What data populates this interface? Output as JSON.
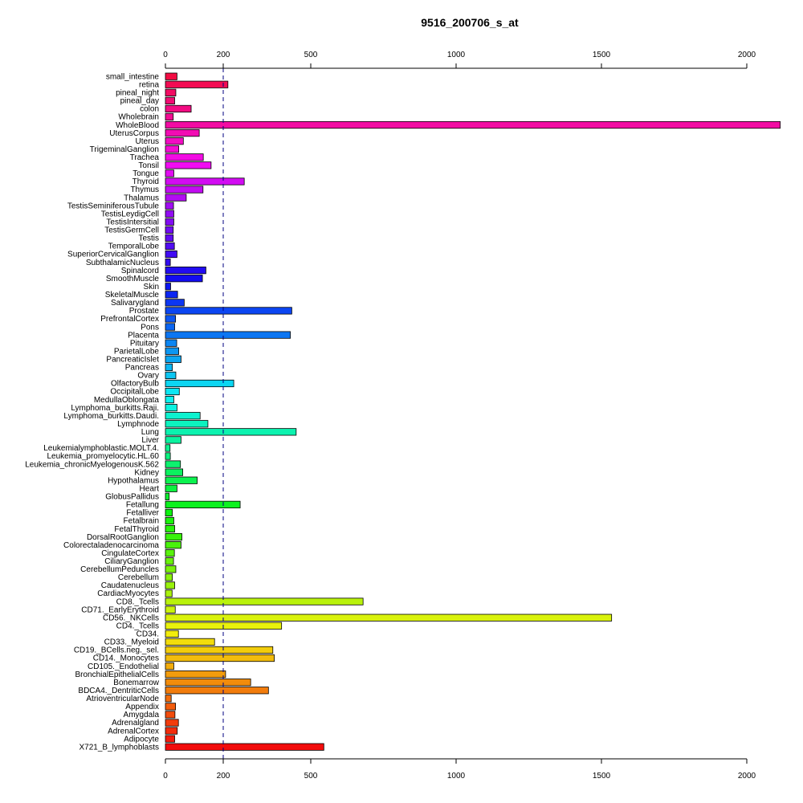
{
  "chart_data": {
    "type": "bar",
    "orientation": "horizontal",
    "title": "9516_200706_s_at",
    "xlabel": "",
    "ylabel": "",
    "grid": false,
    "reference_line": 200,
    "ticks": [
      {
        "value": 0,
        "label": "0"
      },
      {
        "value": 200,
        "label": "200"
      },
      {
        "value": 500,
        "label": "500"
      },
      {
        "value": 1000,
        "label": "1000"
      },
      {
        "value": 1500,
        "label": "1500"
      },
      {
        "value": 2000,
        "label": "2000"
      }
    ],
    "categories": [
      "small_intestine",
      "retina",
      "pineal_night",
      "pineal_day",
      "colon",
      "Wholebrain",
      "WholeBlood",
      "UterusCorpus",
      "Uterus",
      "TrigeminalGanglion",
      "Trachea",
      "Tonsil",
      "Tongue",
      "Thyroid",
      "Thymus",
      "Thalamus",
      "TestisSeminiferousTubule",
      "TestisLeydigCell",
      "TestisIntersitial",
      "TestisGermCell",
      "Testis",
      "TemporalLobe",
      "SuperiorCervicalGanglion",
      "SubthalamicNucleus",
      "Spinalcord",
      "SmoothMuscle",
      "Skin",
      "SkeletalMuscle",
      "Salivarygland",
      "Prostate",
      "PrefrontalCortex",
      "Pons",
      "Placenta",
      "Pituitary",
      "ParietalLobe",
      "PancreaticIslet",
      "Pancreas",
      "Ovary",
      "OlfactoryBulb",
      "OccipitalLobe",
      "MedullaOblongata",
      "Lymphoma_burkitts.Raji.",
      "Lymphoma_burkitts.Daudi.",
      "Lymphnode",
      "Lung",
      "Liver",
      "Leukemialymphoblastic.MOLT.4.",
      "Leukemia_promyelocytic.HL.60",
      "Leukemia_chronicMyelogenousK.562",
      "Kidney",
      "Hypothalamus",
      "Heart",
      "GlobusPallidus",
      "Fetallung",
      "Fetalliver",
      "Fetalbrain",
      "FetalThyroid",
      "DorsalRootGanglion",
      "Colorectaladenocarcinoma",
      "CingulateCortex",
      "CiliaryGanglion",
      "CerebellumPeduncles",
      "Cerebellum",
      "Caudatenucleus",
      "CardiacMyocytes",
      "CD8._Tcells",
      "CD71._EarlyErythroid",
      "CD56._NKCells",
      "CD4._Tcells",
      "CD34.",
      "CD33._Myeloid",
      "CD19._BCells.neg._sel.",
      "CD14._Monocytes",
      "CD105._Endothelial",
      "BronchialEpithelialCells",
      "Bonemarrow",
      "BDCA4._DentriticCells",
      "AtrioventricularNode",
      "Appendix",
      "Amygdala",
      "Adrenalgland",
      "AdrenalCortex",
      "Adipocyte",
      "X721_B_lymphoblasts"
    ],
    "values": [
      40,
      216,
      36,
      32,
      89,
      27,
      2115,
      117,
      62,
      46,
      131,
      158,
      29,
      272,
      130,
      72,
      28,
      29,
      29,
      27,
      27,
      31,
      40,
      17,
      140,
      128,
      18,
      42,
      65,
      435,
      35,
      32,
      430,
      39,
      46,
      54,
      24,
      36,
      236,
      48,
      29,
      40,
      120,
      147,
      450,
      54,
      16,
      17,
      52,
      60,
      110,
      40,
      13,
      258,
      24,
      29,
      32,
      57,
      54,
      31,
      28,
      36,
      24,
      32,
      23,
      680,
      34,
      1535,
      400,
      45,
      170,
      370,
      375,
      29,
      208,
      294,
      355,
      20,
      35,
      33,
      45,
      41,
      32,
      545
    ]
  }
}
